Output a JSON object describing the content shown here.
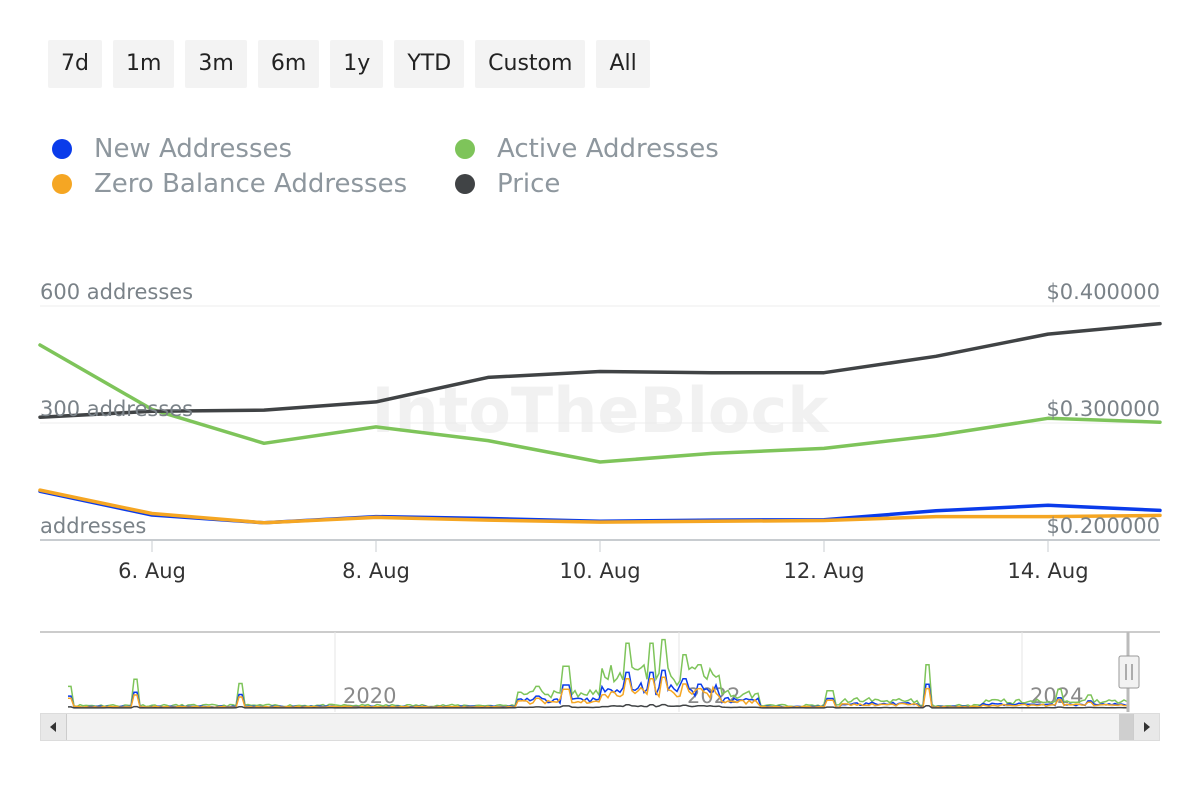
{
  "range_buttons": [
    "7d",
    "1m",
    "3m",
    "6m",
    "1y",
    "YTD",
    "Custom",
    "All"
  ],
  "legend": [
    {
      "label": "New Addresses",
      "color": "#0a3bea"
    },
    {
      "label": "Active Addresses",
      "color": "#7ec45a"
    },
    {
      "label": "Zero Balance Addresses",
      "color": "#f5a623"
    },
    {
      "label": "Price",
      "color": "#404345"
    }
  ],
  "watermark": "IntoTheBlock",
  "chart_data": {
    "type": "line",
    "x": [
      "5 Aug",
      "6 Aug",
      "7 Aug",
      "8 Aug",
      "9 Aug",
      "10 Aug",
      "11 Aug",
      "12 Aug",
      "13 Aug",
      "14 Aug",
      "15 Aug"
    ],
    "x_tick_labels": [
      "6. Aug",
      "8. Aug",
      "10. Aug",
      "12. Aug",
      "14. Aug"
    ],
    "y_left": {
      "ticks": [
        0,
        300,
        600
      ],
      "tick_labels": [
        "addresses",
        "300 addresses",
        "600 addresses"
      ],
      "range": [
        0,
        600
      ]
    },
    "y_right": {
      "ticks": [
        0.2,
        0.3,
        0.4
      ],
      "tick_labels": [
        "$0.200000",
        "$0.300000",
        "$0.400000"
      ],
      "range": [
        0.2,
        0.4
      ]
    },
    "grid": true,
    "legend_position": "top-left",
    "series": [
      {
        "name": "Active Addresses",
        "axis": "left",
        "color": "#7ec45a",
        "values": [
          500,
          335,
          248,
          290,
          255,
          200,
          222,
          235,
          268,
          312,
          302
        ]
      },
      {
        "name": "Price",
        "axis": "right",
        "color": "#404345",
        "values": [
          0.305,
          0.31,
          0.311,
          0.318,
          0.339,
          0.344,
          0.343,
          0.343,
          0.357,
          0.376,
          0.385
        ]
      },
      {
        "name": "New Addresses",
        "axis": "left",
        "color": "#0a3bea",
        "values": [
          125,
          64,
          44,
          60,
          55,
          48,
          51,
          52,
          75,
          89,
          76
        ]
      },
      {
        "name": "Zero Balance Addresses",
        "axis": "left",
        "color": "#f5a623",
        "values": [
          128,
          68,
          44,
          58,
          51,
          46,
          48,
          50,
          60,
          60,
          63
        ]
      }
    ],
    "navigator": {
      "year_labels": [
        "2020",
        "2022",
        "2024"
      ]
    }
  }
}
